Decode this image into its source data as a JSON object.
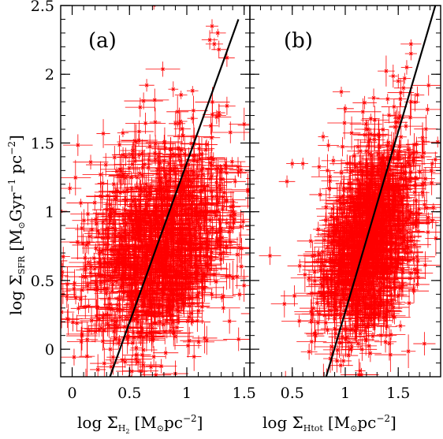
{
  "chart_data": [
    {
      "type": "scatter",
      "panel_label": "(a)",
      "xlabel": "log Σ_H₂ [M_⊙pc⁻²]",
      "ylabel": "log Σ_SFR [M_⊙Gyr⁻¹ pc⁻²]",
      "xlim": [
        -0.1,
        1.55
      ],
      "ylim": [
        -0.2,
        2.5
      ],
      "xticks": [
        0,
        0.5,
        1,
        1.5
      ],
      "xtick_labels": [
        "0",
        "0.5",
        "1",
        "1.5"
      ],
      "yticks": [
        0,
        0.5,
        1,
        1.5,
        2,
        2.5
      ],
      "ytick_labels": [
        "0",
        "0.5",
        "1",
        "1.5",
        "2",
        "2.5"
      ],
      "marker_color": "#ff0000",
      "fit_line": [
        [
          0.33,
          -0.2
        ],
        [
          1.45,
          2.4
        ]
      ],
      "cloud": {
        "x_center": 0.75,
        "x_spread": 0.3,
        "y_center": 0.75,
        "y_spread": 0.38,
        "n": 1400
      },
      "outliers": [
        [
          -0.02,
          1.17
        ],
        [
          0.65,
          1.92
        ],
        [
          1.2,
          2.25
        ],
        [
          1.24,
          2.22
        ],
        [
          1.27,
          2.3
        ],
        [
          1.35,
          2.12
        ],
        [
          1.28,
          2.18
        ],
        [
          1.22,
          2.35
        ],
        [
          1.35,
          1.77
        ],
        [
          1.42,
          0.98
        ],
        [
          1.41,
          0.92
        ],
        [
          1.4,
          0.88
        ],
        [
          0.95,
          1.85
        ],
        [
          1.28,
          1.72
        ],
        [
          1.05,
          1.88
        ]
      ]
    },
    {
      "type": "scatter",
      "panel_label": "(b)",
      "xlabel": "log Σ_Htot [M_⊙pc⁻²]",
      "ylabel": "",
      "xlim": [
        0.1,
        1.9
      ],
      "ylim": [
        -0.2,
        2.5
      ],
      "xticks": [
        0.5,
        1,
        1.5
      ],
      "xtick_labels": [
        "0.5",
        "1",
        "1.5"
      ],
      "yticks": [
        0,
        0.5,
        1,
        1.5,
        2,
        2.5
      ],
      "ytick_labels": [],
      "marker_color": "#ff0000",
      "fit_line": [
        [
          0.82,
          -0.2
        ],
        [
          1.85,
          2.5
        ]
      ],
      "cloud": {
        "x_center": 1.22,
        "x_spread": 0.22,
        "y_center": 0.8,
        "y_spread": 0.38,
        "n": 1400
      },
      "outliers": [
        [
          0.29,
          0.68
        ],
        [
          0.5,
          1.35
        ],
        [
          0.45,
          1.22
        ],
        [
          0.6,
          1.35
        ],
        [
          1.62,
          2.22
        ],
        [
          1.62,
          2.15
        ],
        [
          1.58,
          2.05
        ],
        [
          1.56,
          1.97
        ],
        [
          1.55,
          1.9
        ],
        [
          1.68,
          1.85
        ],
        [
          1.5,
          1.95
        ],
        [
          1.52,
          1.82
        ],
        [
          1.85,
          1.38
        ],
        [
          1.82,
          1.35
        ],
        [
          1.78,
          0.92
        ],
        [
          1.0,
          1.75
        ],
        [
          1.4,
          1.82
        ]
      ]
    }
  ]
}
